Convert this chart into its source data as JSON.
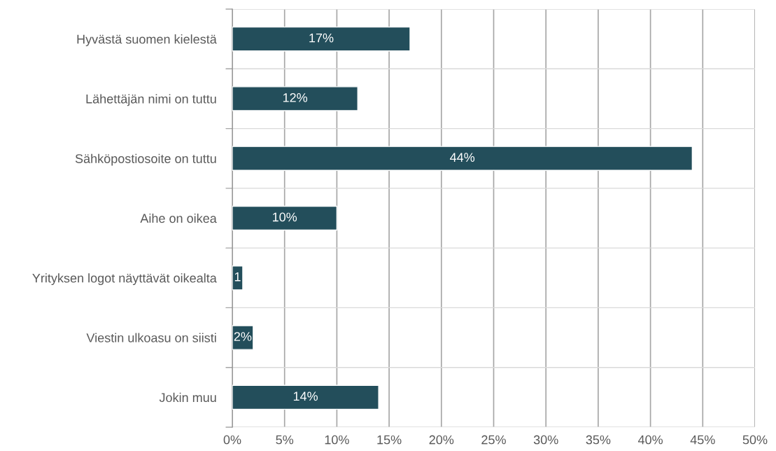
{
  "chart_data": {
    "type": "bar",
    "orientation": "horizontal",
    "categories": [
      "Hyvästä suomen kielestä",
      "Lähettäjän nimi on tuttu",
      "Sähköpostiosoite on tuttu",
      "Aihe on oikea",
      "Yrityksen logot näyttävät oikealta",
      "Viestin ulkoasu on siisti",
      "Jokin muu"
    ],
    "values": [
      17,
      12,
      44,
      10,
      1,
      2,
      14
    ],
    "value_labels": [
      "17%",
      "12%",
      "44%",
      "10%",
      "1",
      "2%",
      "14%"
    ],
    "color": "#234e5b",
    "xlim": [
      0,
      50
    ],
    "xticks": [
      {
        "value": 0,
        "label": "0%"
      },
      {
        "value": 5,
        "label": "5%"
      },
      {
        "value": 10,
        "label": "10%"
      },
      {
        "value": 15,
        "label": "15%"
      },
      {
        "value": 20,
        "label": "20%"
      },
      {
        "value": 25,
        "label": "25%"
      },
      {
        "value": 30,
        "label": "30%"
      },
      {
        "value": 35,
        "label": "35%"
      },
      {
        "value": 40,
        "label": "40%"
      },
      {
        "value": 45,
        "label": "45%"
      },
      {
        "value": 50,
        "label": "50%"
      }
    ],
    "grid": true,
    "legend": false
  }
}
